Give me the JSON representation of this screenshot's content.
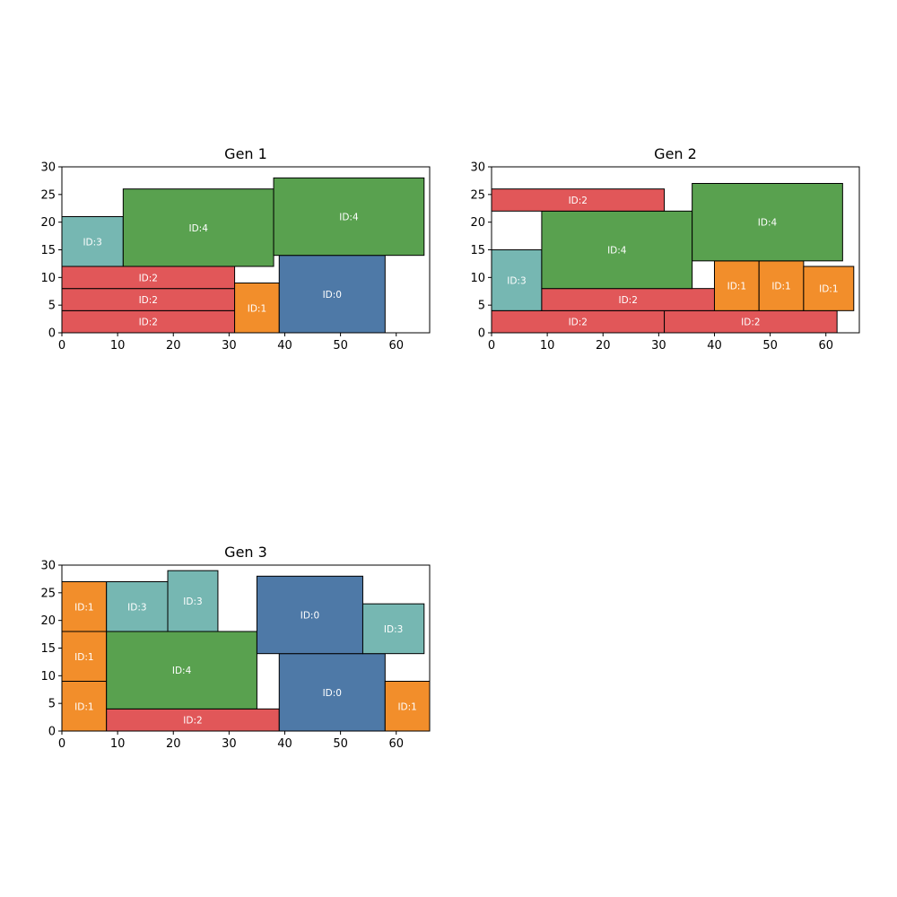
{
  "colors": {
    "ID:0": "#4e79a7",
    "ID:1": "#f28e2b",
    "ID:2": "#e15759",
    "ID:3": "#76b7b2",
    "ID:4": "#59a14f"
  },
  "chart_data": [
    {
      "type": "rectangle-packing",
      "title": "Gen 1",
      "xlim": [
        0,
        66
      ],
      "ylim": [
        0,
        30
      ],
      "xticks": [
        0,
        10,
        20,
        30,
        40,
        50,
        60
      ],
      "yticks": [
        0,
        5,
        10,
        15,
        20,
        25,
        30
      ],
      "rects": [
        {
          "id": "ID:2",
          "x": 0,
          "y": 0,
          "w": 31,
          "h": 4
        },
        {
          "id": "ID:2",
          "x": 0,
          "y": 4,
          "w": 31,
          "h": 4
        },
        {
          "id": "ID:2",
          "x": 0,
          "y": 8,
          "w": 31,
          "h": 4
        },
        {
          "id": "ID:3",
          "x": 0,
          "y": 12,
          "w": 11,
          "h": 9
        },
        {
          "id": "ID:4",
          "x": 11,
          "y": 12,
          "w": 27,
          "h": 14
        },
        {
          "id": "ID:1",
          "x": 31,
          "y": 0,
          "w": 8,
          "h": 9
        },
        {
          "id": "ID:0",
          "x": 39,
          "y": 0,
          "w": 19,
          "h": 14
        },
        {
          "id": "ID:4",
          "x": 38,
          "y": 14,
          "w": 27,
          "h": 14
        }
      ]
    },
    {
      "type": "rectangle-packing",
      "title": "Gen 2",
      "xlim": [
        0,
        66
      ],
      "ylim": [
        0,
        30
      ],
      "xticks": [
        0,
        10,
        20,
        30,
        40,
        50,
        60
      ],
      "yticks": [
        0,
        5,
        10,
        15,
        20,
        25,
        30
      ],
      "rects": [
        {
          "id": "ID:2",
          "x": 0,
          "y": 0,
          "w": 31,
          "h": 4
        },
        {
          "id": "ID:2",
          "x": 31,
          "y": 0,
          "w": 31,
          "h": 4
        },
        {
          "id": "ID:3",
          "x": 0,
          "y": 4,
          "w": 9,
          "h": 11
        },
        {
          "id": "ID:2",
          "x": 9,
          "y": 4,
          "w": 31,
          "h": 4
        },
        {
          "id": "ID:4",
          "x": 9,
          "y": 8,
          "w": 27,
          "h": 14
        },
        {
          "id": "ID:2",
          "x": 0,
          "y": 22,
          "w": 31,
          "h": 4
        },
        {
          "id": "ID:1",
          "x": 40,
          "y": 4,
          "w": 8,
          "h": 9
        },
        {
          "id": "ID:1",
          "x": 48,
          "y": 4,
          "w": 8,
          "h": 9
        },
        {
          "id": "ID:1",
          "x": 56,
          "y": 4,
          "w": 9,
          "h": 8
        },
        {
          "id": "ID:4",
          "x": 36,
          "y": 13,
          "w": 27,
          "h": 14
        }
      ]
    },
    {
      "type": "rectangle-packing",
      "title": "Gen 3",
      "xlim": [
        0,
        66
      ],
      "ylim": [
        0,
        30
      ],
      "xticks": [
        0,
        10,
        20,
        30,
        40,
        50,
        60
      ],
      "yticks": [
        0,
        5,
        10,
        15,
        20,
        25,
        30
      ],
      "rects": [
        {
          "id": "ID:1",
          "x": 0,
          "y": 0,
          "w": 8,
          "h": 9
        },
        {
          "id": "ID:1",
          "x": 0,
          "y": 9,
          "w": 8,
          "h": 9
        },
        {
          "id": "ID:1",
          "x": 0,
          "y": 18,
          "w": 8,
          "h": 9
        },
        {
          "id": "ID:2",
          "x": 8,
          "y": 0,
          "w": 31,
          "h": 4
        },
        {
          "id": "ID:4",
          "x": 8,
          "y": 4,
          "w": 27,
          "h": 14
        },
        {
          "id": "ID:3",
          "x": 8,
          "y": 18,
          "w": 11,
          "h": 9
        },
        {
          "id": "ID:3",
          "x": 19,
          "y": 18,
          "w": 9,
          "h": 11
        },
        {
          "id": "ID:0",
          "x": 39,
          "y": 0,
          "w": 19,
          "h": 14
        },
        {
          "id": "ID:0",
          "x": 35,
          "y": 14,
          "w": 19,
          "h": 14
        },
        {
          "id": "ID:3",
          "x": 54,
          "y": 14,
          "w": 11,
          "h": 9
        },
        {
          "id": "ID:1",
          "x": 58,
          "y": 0,
          "w": 8,
          "h": 9
        }
      ]
    }
  ]
}
